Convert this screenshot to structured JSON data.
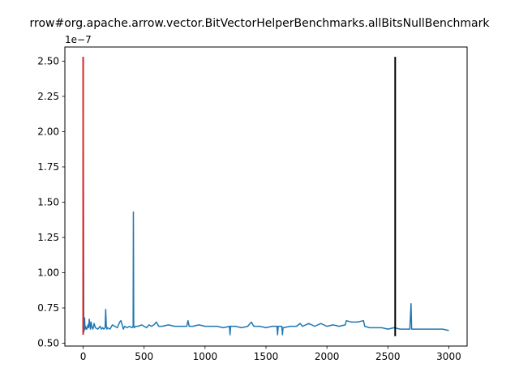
{
  "chart_data": {
    "type": "line",
    "title": "rrow#org.apache.arrow.vector.BitVectorHelperBenchmarks.allBitsNullBenchmark",
    "xlabel": "",
    "ylabel": "",
    "y_offset_label": "1e−7",
    "xlim": [
      -150,
      3150
    ],
    "ylim": [
      0.48,
      2.6
    ],
    "xticks": [
      0,
      500,
      1000,
      1500,
      2000,
      2500,
      3000
    ],
    "xtick_labels": [
      "0",
      "500",
      "1000",
      "1500",
      "2000",
      "2500",
      "3000"
    ],
    "yticks": [
      0.5,
      0.75,
      1.0,
      1.25,
      1.5,
      1.75,
      2.0,
      2.25,
      2.5
    ],
    "ytick_labels": [
      "0.50",
      "0.75",
      "1.00",
      "1.25",
      "1.50",
      "1.75",
      "2.00",
      "2.25",
      "2.50"
    ],
    "grid": false,
    "series": [
      {
        "color": "#1f77b4",
        "x": [
          0,
          5,
          10,
          12,
          15,
          20,
          25,
          30,
          40,
          45,
          50,
          60,
          65,
          70,
          80,
          90,
          100,
          120,
          140,
          150,
          160,
          170,
          180,
          185,
          190,
          195,
          200,
          220,
          240,
          260,
          280,
          300,
          310,
          320,
          330,
          340,
          360,
          380,
          400,
          410,
          412,
          415,
          418,
          420,
          430,
          450,
          480,
          500,
          520,
          540,
          560,
          580,
          600,
          620,
          650,
          700,
          750,
          800,
          850,
          860,
          870,
          900,
          950,
          1000,
          1050,
          1100,
          1150,
          1200,
          1205,
          1210,
          1250,
          1300,
          1350,
          1380,
          1400,
          1450,
          1500,
          1550,
          1590,
          1595,
          1600,
          1630,
          1635,
          1640,
          1700,
          1750,
          1780,
          1800,
          1850,
          1900,
          1950,
          2000,
          2050,
          2100,
          2150,
          2160,
          2200,
          2250,
          2300,
          2310,
          2350,
          2400,
          2450,
          2500,
          2550,
          2600,
          2650,
          2680,
          2690,
          2695,
          2700,
          2750,
          2800,
          2850,
          2900,
          2950,
          3000
        ],
        "y": [
          2.53,
          0.58,
          0.6,
          0.68,
          0.6,
          0.62,
          0.6,
          0.6,
          0.63,
          0.61,
          0.67,
          0.6,
          0.65,
          0.62,
          0.6,
          0.64,
          0.61,
          0.6,
          0.62,
          0.6,
          0.61,
          0.6,
          0.61,
          0.74,
          0.62,
          0.6,
          0.61,
          0.6,
          0.63,
          0.62,
          0.61,
          0.65,
          0.66,
          0.63,
          0.6,
          0.62,
          0.61,
          0.62,
          0.61,
          0.62,
          1.43,
          0.62,
          0.61,
          0.61,
          0.62,
          0.62,
          0.63,
          0.62,
          0.61,
          0.63,
          0.62,
          0.63,
          0.65,
          0.62,
          0.62,
          0.63,
          0.62,
          0.62,
          0.62,
          0.66,
          0.62,
          0.62,
          0.63,
          0.62,
          0.62,
          0.62,
          0.61,
          0.62,
          0.56,
          0.62,
          0.62,
          0.61,
          0.62,
          0.65,
          0.62,
          0.62,
          0.61,
          0.62,
          0.62,
          0.56,
          0.62,
          0.62,
          0.56,
          0.61,
          0.62,
          0.62,
          0.64,
          0.62,
          0.64,
          0.62,
          0.64,
          0.62,
          0.63,
          0.62,
          0.63,
          0.66,
          0.65,
          0.65,
          0.66,
          0.62,
          0.61,
          0.61,
          0.61,
          0.6,
          0.61,
          0.6,
          0.6,
          0.6,
          0.78,
          0.6,
          0.6,
          0.6,
          0.6,
          0.6,
          0.6,
          0.6,
          0.59
        ]
      }
    ],
    "vlines": [
      {
        "x": 0,
        "ymin": 0.56,
        "ymax": 2.53,
        "color": "#d62728"
      },
      {
        "x": 2560,
        "ymin": 0.55,
        "ymax": 2.53,
        "color": "#000000"
      }
    ]
  }
}
